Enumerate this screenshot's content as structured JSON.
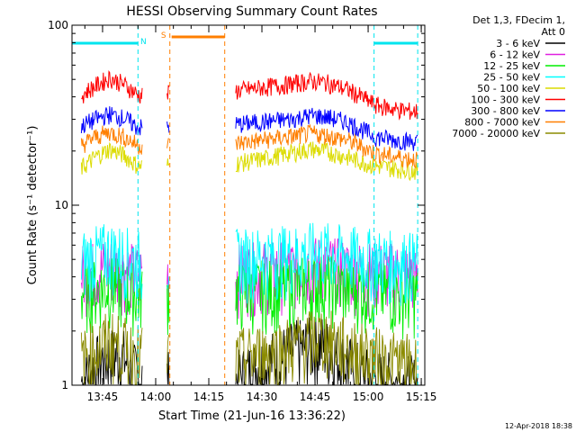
{
  "chart_data": {
    "type": "line",
    "title": "HESSI Observing Summary Count Rates",
    "xlabel": "Start Time (21-Jun-16 13:36:22)",
    "ylabel": "Count Rate (s⁻¹ detector⁻¹)",
    "yscale": "log",
    "ylim": [
      1,
      100
    ],
    "xlim": [
      "13:36:22",
      "15:16:00"
    ],
    "x_ticks": [
      "13:45",
      "14:00",
      "14:15",
      "14:30",
      "14:45",
      "15:00",
      "15:15"
    ],
    "y_ticks": [
      "1",
      "10",
      "100"
    ],
    "grid": false,
    "legend_header": [
      "Det 1,3, FDecim 1,",
      "Att 0"
    ],
    "legend_position": "right",
    "footer": "12-Apr-2018 18:38",
    "markers": [
      {
        "label": "N",
        "color": "#00e5ee",
        "type": "night",
        "intervals": [
          [
            "13:36:22",
            "13:55:00"
          ],
          [
            "15:01:40",
            "15:14:00"
          ]
        ],
        "boundaries": [
          "13:55:00",
          "15:01:40",
          "15:14:00"
        ]
      },
      {
        "label": "S",
        "color": "#ff7f00",
        "type": "saa",
        "intervals": [
          [
            "14:04:30",
            "14:19:30"
          ]
        ],
        "boundaries": [
          "14:04:00",
          "14:19:30"
        ]
      }
    ],
    "data_gaps": [
      [
        "13:56:20",
        "14:03:00"
      ],
      [
        "14:04:00",
        "14:22:30"
      ]
    ],
    "series": [
      {
        "name": "3 - 6 keV",
        "color": "#000000",
        "times": [
          "13:39",
          "13:45",
          "13:50",
          "13:55",
          "14:22",
          "14:30",
          "14:40",
          "14:47",
          "14:52",
          "15:00",
          "15:08",
          "15:14"
        ],
        "values": [
          1.05,
          1.4,
          1.5,
          1.1,
          1.05,
          1.3,
          1.6,
          1.7,
          1.4,
          1.1,
          1.05,
          1.0
        ]
      },
      {
        "name": "6 - 12 keV",
        "color": "#e020e0",
        "times": [
          "13:39",
          "13:47",
          "13:55",
          "14:22",
          "14:35",
          "14:47",
          "14:55",
          "15:05",
          "15:14"
        ],
        "values": [
          4.2,
          4.6,
          4.2,
          4.2,
          4.4,
          4.7,
          4.4,
          4.3,
          4.2
        ]
      },
      {
        "name": "12 - 25 keV",
        "color": "#00ee00",
        "times": [
          "13:39",
          "13:47",
          "13:55",
          "14:22",
          "14:35",
          "14:47",
          "14:55",
          "15:05",
          "15:14"
        ],
        "values": [
          3.3,
          3.6,
          3.3,
          3.3,
          3.5,
          3.7,
          3.5,
          3.3,
          3.2
        ]
      },
      {
        "name": "25 - 50 keV",
        "color": "#00ffff",
        "times": [
          "13:39",
          "13:47",
          "13:55",
          "14:22",
          "14:35",
          "14:47",
          "14:55",
          "15:05",
          "15:14"
        ],
        "values": [
          5.0,
          5.6,
          5.0,
          5.1,
          5.3,
          5.6,
          5.3,
          5.0,
          4.9
        ]
      },
      {
        "name": "50 - 100 keV",
        "color": "#dcdc00",
        "times": [
          "13:39",
          "13:43",
          "13:47",
          "13:51",
          "13:55",
          "14:22",
          "14:30",
          "14:38",
          "14:44",
          "14:48",
          "14:54",
          "15:02",
          "15:08",
          "15:14"
        ],
        "values": [
          16,
          18.5,
          20.5,
          19,
          16.5,
          17,
          18,
          19.5,
          20.5,
          20,
          18.5,
          16.5,
          16,
          15.5
        ]
      },
      {
        "name": "100 - 300 keV",
        "color": "#ff0000",
        "times": [
          "13:39",
          "13:43",
          "13:47",
          "13:51",
          "13:55",
          "14:22",
          "14:30",
          "14:38",
          "14:44",
          "14:48",
          "14:54",
          "15:02",
          "15:08",
          "15:14"
        ],
        "values": [
          41,
          46,
          51,
          47,
          41,
          43,
          45,
          47,
          49,
          48,
          44,
          36,
          34,
          33
        ]
      },
      {
        "name": "300 - 800 keV",
        "color": "#0000ff",
        "times": [
          "13:39",
          "13:43",
          "13:47",
          "13:51",
          "13:55",
          "14:22",
          "14:30",
          "14:38",
          "14:44",
          "14:48",
          "14:54",
          "15:02",
          "15:08",
          "15:14"
        ],
        "values": [
          27.5,
          30,
          32,
          30.5,
          27,
          28,
          29,
          30,
          31.5,
          31,
          29,
          24,
          23,
          22.5
        ]
      },
      {
        "name": "800 - 7000 keV",
        "color": "#ff7f00",
        "times": [
          "13:39",
          "13:43",
          "13:47",
          "13:51",
          "13:55",
          "14:22",
          "14:30",
          "14:38",
          "14:44",
          "14:48",
          "14:54",
          "15:02",
          "15:08",
          "15:14"
        ],
        "values": [
          21.5,
          24,
          25.5,
          24,
          21.5,
          22,
          23,
          24,
          25,
          24.5,
          23,
          19.5,
          18.5,
          18
        ]
      },
      {
        "name": "7000 - 20000 keV",
        "color": "#8b8b00",
        "times": [
          "13:39",
          "13:47",
          "13:55",
          "14:22",
          "14:35",
          "14:47",
          "14:55",
          "15:05",
          "15:14"
        ],
        "values": [
          1.4,
          1.8,
          1.5,
          1.4,
          1.6,
          1.9,
          1.6,
          1.4,
          1.3
        ]
      }
    ]
  }
}
